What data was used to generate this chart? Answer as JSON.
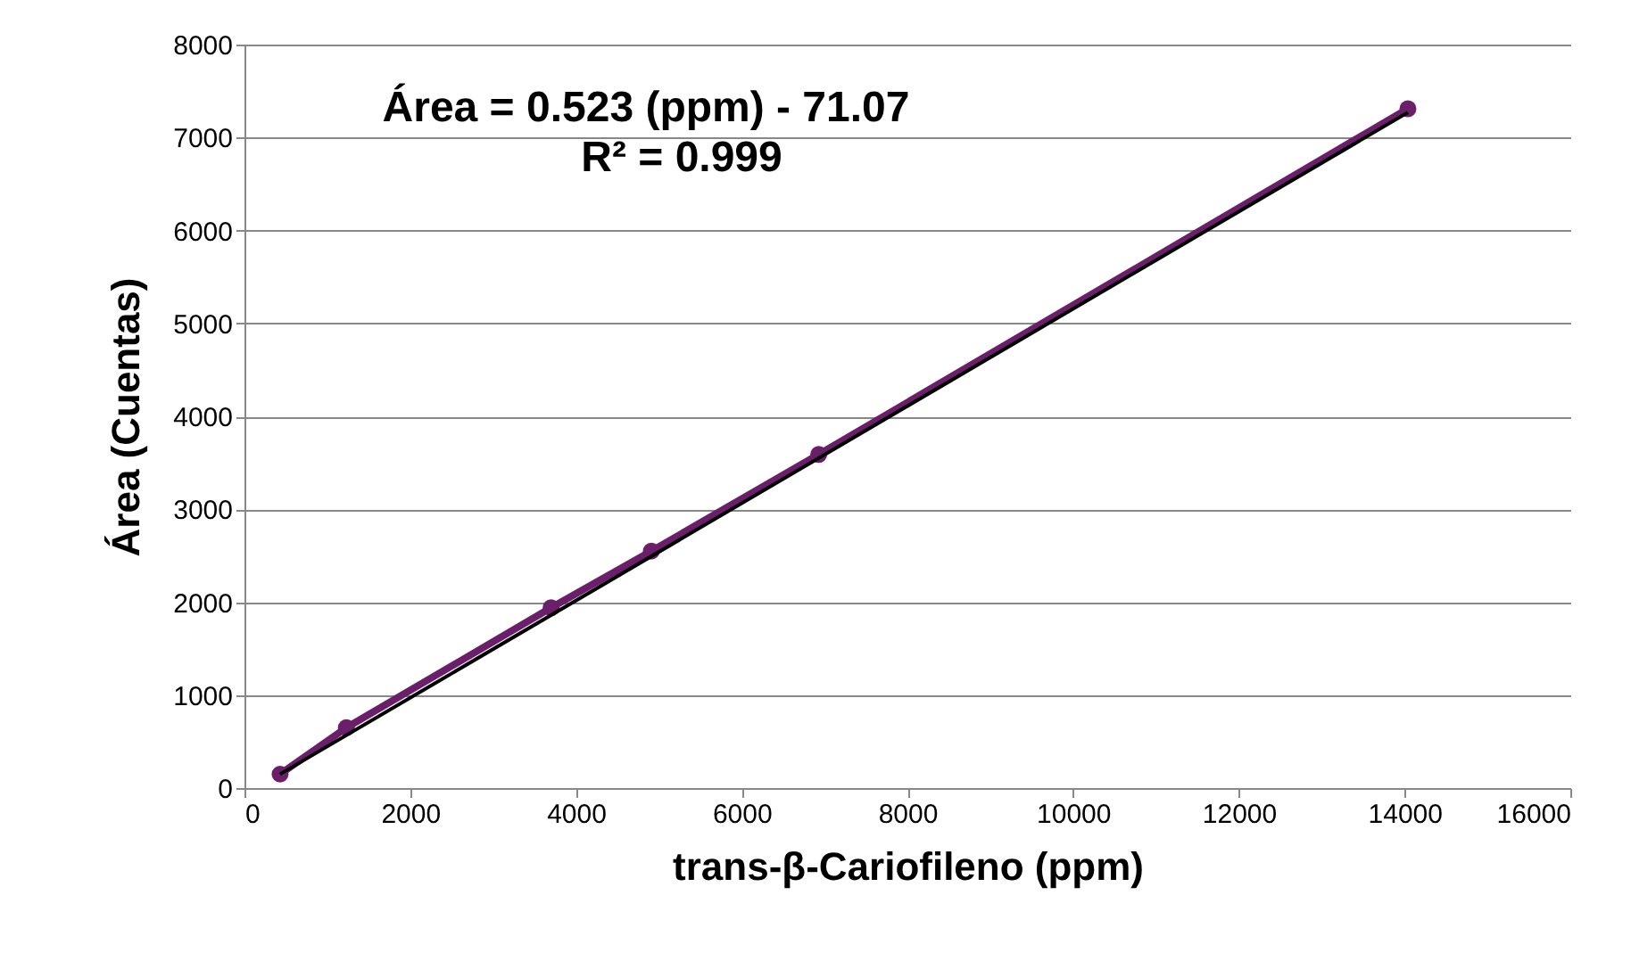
{
  "chart_data": {
    "type": "line",
    "xlabel": "trans-β-Cariofileno (ppm)",
    "ylabel": "Área (Cuentas)",
    "annotations": [
      "Área = 0.523 (ppm) - 71.07",
      "R² = 0.999"
    ],
    "series": [
      {
        "color": "#6b1f6b",
        "x": [
          430,
          1230,
          3700,
          4910,
          6930,
          14040
        ],
        "values": [
          150,
          650,
          1940,
          2550,
          3590,
          7310
        ],
        "marker": "circle"
      },
      {
        "type": "line",
        "color": "#000000",
        "x": [
          430,
          14040
        ],
        "values": [
          150,
          7270
        ],
        "marker": "none"
      }
    ],
    "xlim": [
      0,
      16000
    ],
    "xticks": [
      0,
      2000,
      4000,
      6000,
      8000,
      10000,
      12000,
      14000,
      16000
    ],
    "ylim": [
      0,
      8000
    ],
    "yticks": [
      0,
      1000,
      2000,
      3000,
      4000,
      5000,
      6000,
      7000,
      8000
    ],
    "grid": "y"
  }
}
